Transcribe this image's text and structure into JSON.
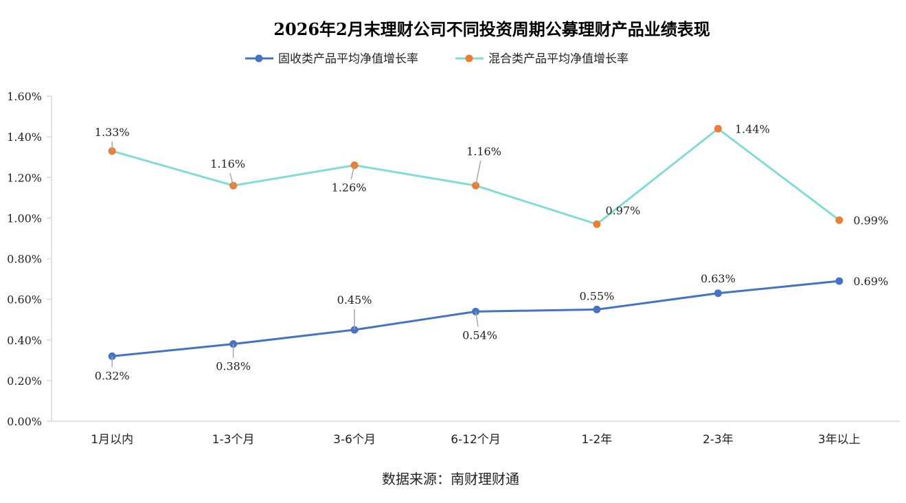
{
  "chart_data": {
    "type": "line",
    "title": "2026年2月末理财公司不同投资周期公募理财产品业绩表现",
    "source": "数据来源：南财理财通",
    "xlabel": "",
    "ylabel": "",
    "ylim": [
      0,
      1.6
    ],
    "y_ticks": [
      0,
      0.2,
      0.4,
      0.6,
      0.8,
      1.0,
      1.2,
      1.4,
      1.6
    ],
    "y_tick_labels": [
      "0.00%",
      "0.20%",
      "0.40%",
      "0.60%",
      "0.80%",
      "1.00%",
      "1.20%",
      "1.40%",
      "1.60%"
    ],
    "grid": false,
    "legend_position": "top-center",
    "categories": [
      "1月以内",
      "1-3个月",
      "3-6个月",
      "6-12个月",
      "1-2年",
      "2-3年",
      "3年以上"
    ],
    "series": [
      {
        "name": "固收类产品平均净值增长率",
        "line_color": "#4472C4",
        "marker_color": "#4472C4",
        "values": [
          0.32,
          0.38,
          0.45,
          0.54,
          0.55,
          0.63,
          0.69
        ],
        "labels": [
          "0.32%",
          "0.38%",
          "0.45%",
          "0.54%",
          "0.55%",
          "0.63%",
          "0.69%"
        ]
      },
      {
        "name": "混合类产品平均净值增长率",
        "line_color": "#7FDDD6",
        "marker_color": "#ED7D31",
        "values": [
          1.33,
          1.16,
          1.26,
          1.16,
          0.97,
          1.44,
          0.99
        ],
        "labels": [
          "1.33%",
          "1.16%",
          "1.26%",
          "1.16%",
          "0.97%",
          "1.44%",
          "0.99%"
        ]
      }
    ]
  }
}
